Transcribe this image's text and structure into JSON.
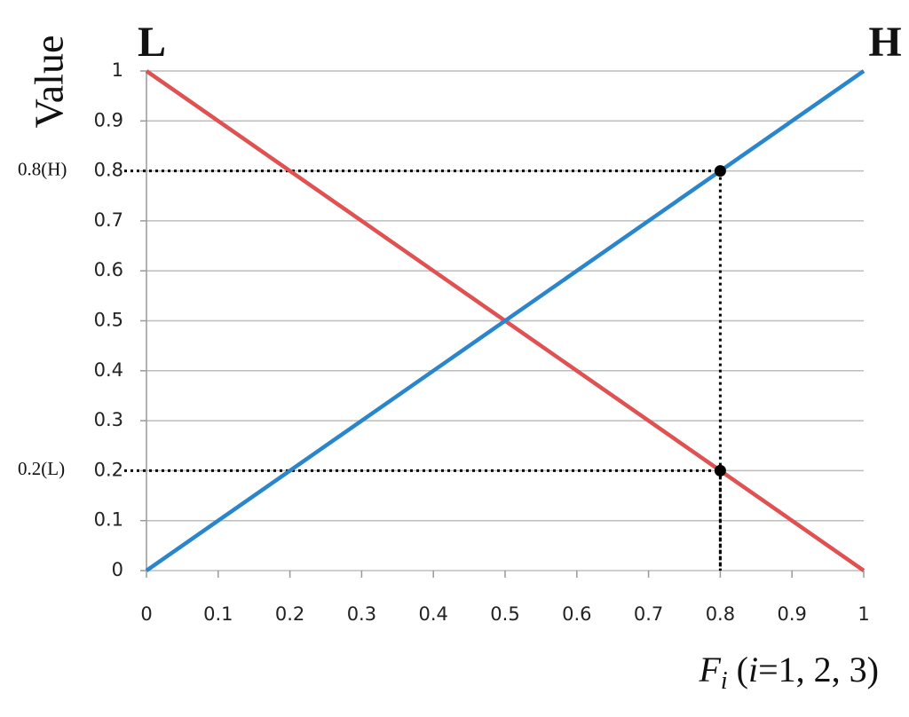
{
  "chart_data": {
    "type": "line",
    "ylabel": "Value",
    "xlabel_parts": [
      "F",
      "i",
      " (",
      "i",
      "=1, 2, 3)"
    ],
    "x": [
      0,
      1
    ],
    "series": [
      {
        "name": "L",
        "color": "#e05252",
        "values": [
          1,
          0
        ]
      },
      {
        "name": "H",
        "color": "#2a86cc",
        "values": [
          0,
          1
        ]
      }
    ],
    "xlim": [
      0,
      1
    ],
    "ylim": [
      0,
      1
    ],
    "xticks": [
      0,
      0.1,
      0.2,
      0.3,
      0.4,
      0.5,
      0.6,
      0.7,
      0.8,
      0.9,
      1
    ],
    "yticks": [
      0,
      0.1,
      0.2,
      0.3,
      0.4,
      0.5,
      0.6,
      0.7,
      0.8,
      0.9,
      1
    ],
    "grid": true,
    "markers": [
      {
        "x": 0.8,
        "y": 0.8,
        "label": "0.8(H)"
      },
      {
        "x": 0.8,
        "y": 0.2,
        "label": "0.2(L)"
      }
    ]
  }
}
